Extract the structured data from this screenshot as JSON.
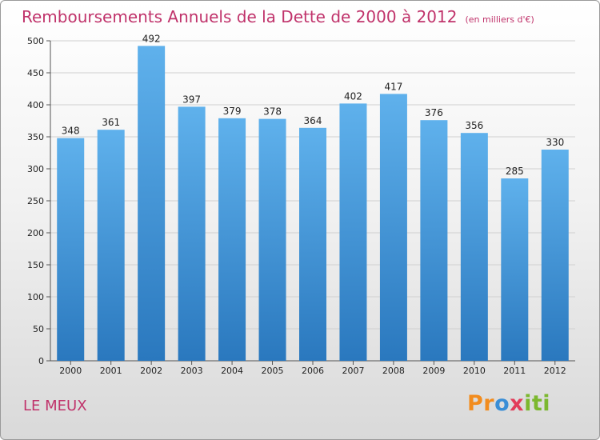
{
  "header": {
    "title": "Remboursements Annuels de la Dette de 2000 à 2012",
    "unit": "(en milliers d'€)"
  },
  "commune": "LE MEUX",
  "logo": {
    "text": "Proxiti"
  },
  "colors": {
    "bar": "#3f93d8",
    "title": "#c0336b",
    "grid": "#d0d0d0"
  },
  "chart_data": {
    "type": "bar",
    "title": "Remboursements Annuels de la Dette de 2000 à 2012",
    "unit": "(en milliers d'€)",
    "categories": [
      "2000",
      "2001",
      "2002",
      "2003",
      "2004",
      "2005",
      "2006",
      "2007",
      "2008",
      "2009",
      "2010",
      "2011",
      "2012"
    ],
    "values": [
      348,
      361,
      492,
      397,
      379,
      378,
      364,
      402,
      417,
      376,
      356,
      285,
      330
    ],
    "ylim": [
      0,
      500
    ],
    "yticks": [
      0,
      50,
      100,
      150,
      200,
      250,
      300,
      350,
      400,
      450,
      500
    ],
    "grid": true,
    "data_labels": true
  }
}
